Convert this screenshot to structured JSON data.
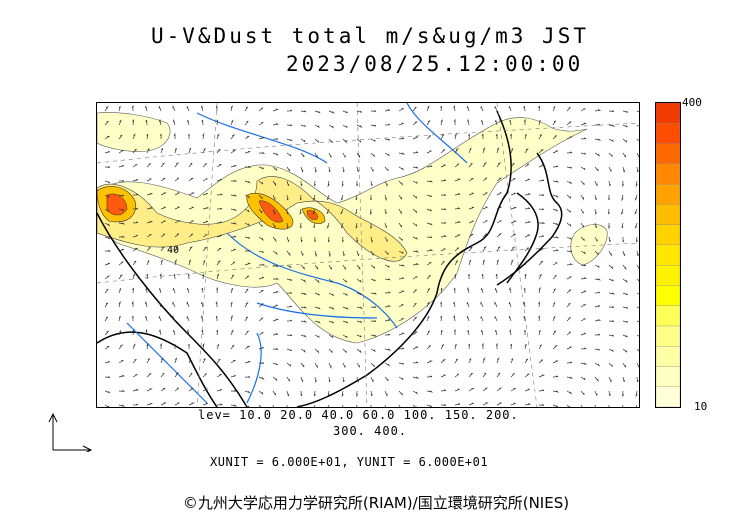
{
  "title": {
    "line1": "U-V&Dust total m/s&ug/m3 JST",
    "line2": "2023/08/25.12:00:00"
  },
  "map": {
    "contour_label": "40"
  },
  "colorbar": {
    "max_label": "400",
    "min_label": "10",
    "colors": [
      "#ffffd8",
      "#ffffc0",
      "#ffffa6",
      "#ffff88",
      "#ffff5a",
      "#ffff00",
      "#fff200",
      "#ffe600",
      "#ffd200",
      "#ffbd00",
      "#ffa200",
      "#ff8800",
      "#ff6a00",
      "#ff4d00",
      "#f03c00"
    ]
  },
  "legend": {
    "levels_line1": "lev= 10.0 20.0 40.0 60.0 100. 150. 200.",
    "levels_line2": "300. 400.",
    "units": "XUNIT = 6.000E+01, YUNIT = 6.000E+01"
  },
  "credit": "©九州大学応用力学研究所(RIAM)/国立環境研究所(NIES)",
  "icons": {
    "reference_vector": "reference-vector-icon"
  }
}
